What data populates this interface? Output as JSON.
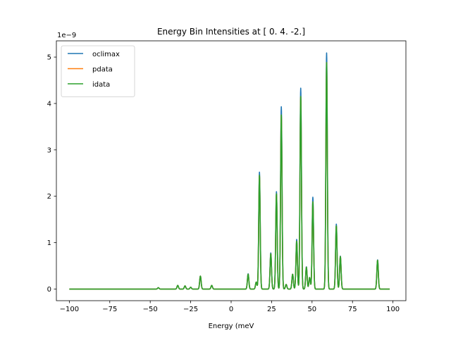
{
  "chart_data": {
    "type": "line",
    "title": "Energy Bin Intensities at [ 0.  4. -2.]",
    "xlabel": "Energy (meV",
    "ylabel": "",
    "scale_label": "1e−9",
    "xlim": [
      -108,
      108
    ],
    "ylim": [
      -0.25,
      5.35
    ],
    "xticks": [
      -100,
      -75,
      -50,
      -25,
      0,
      25,
      50,
      75,
      100
    ],
    "xtick_labels": [
      "−100",
      "−75",
      "−50",
      "−25",
      "0",
      "25",
      "50",
      "75",
      "100"
    ],
    "yticks": [
      0,
      1,
      2,
      3,
      4,
      5
    ],
    "ytick_labels": [
      "0",
      "1",
      "2",
      "3",
      "4",
      "5"
    ],
    "legend_position": "upper-left",
    "grid": false,
    "x_range": [
      -100,
      98
    ],
    "peak_width": 0.45,
    "series": [
      {
        "name": "oclimax",
        "color": "#1f77b4",
        "peaks": [
          [
            -45,
            0.03
          ],
          [
            -33,
            0.08
          ],
          [
            -28.5,
            0.07
          ],
          [
            -25,
            0.04
          ],
          [
            -19,
            0.28
          ],
          [
            -12,
            0.08
          ],
          [
            10.5,
            0.33
          ],
          [
            15.5,
            0.15
          ],
          [
            17.5,
            2.52
          ],
          [
            24.5,
            0.78
          ],
          [
            28,
            2.1
          ],
          [
            31,
            3.93
          ],
          [
            34,
            0.1
          ],
          [
            38,
            0.32
          ],
          [
            40.5,
            1.07
          ],
          [
            43,
            4.33
          ],
          [
            46.5,
            0.48
          ],
          [
            48.5,
            0.25
          ],
          [
            50.5,
            1.98
          ],
          [
            59,
            5.09
          ],
          [
            65,
            1.4
          ],
          [
            67.5,
            0.71
          ],
          [
            90.5,
            0.63
          ]
        ]
      },
      {
        "name": "pdata",
        "color": "#ff7f0e",
        "peaks": [
          [
            -45,
            0.03
          ],
          [
            -33,
            0.08
          ],
          [
            -28.5,
            0.07
          ],
          [
            -25,
            0.04
          ],
          [
            -19,
            0.28
          ],
          [
            -12,
            0.08
          ],
          [
            10.5,
            0.32
          ],
          [
            15.5,
            0.15
          ],
          [
            17.5,
            2.45
          ],
          [
            24.5,
            0.76
          ],
          [
            28,
            2.05
          ],
          [
            31,
            3.75
          ],
          [
            34,
            0.1
          ],
          [
            38,
            0.32
          ],
          [
            40.5,
            1.03
          ],
          [
            43,
            4.15
          ],
          [
            46.5,
            0.47
          ],
          [
            48.5,
            0.25
          ],
          [
            50.5,
            1.88
          ],
          [
            59,
            4.88
          ],
          [
            65,
            1.36
          ],
          [
            67.5,
            0.7
          ],
          [
            90.5,
            0.62
          ]
        ]
      },
      {
        "name": "idata",
        "color": "#2ca02c",
        "peaks": [
          [
            -45,
            0.03
          ],
          [
            -33,
            0.08
          ],
          [
            -28.5,
            0.07
          ],
          [
            -25,
            0.04
          ],
          [
            -19,
            0.28
          ],
          [
            -12,
            0.08
          ],
          [
            10.5,
            0.32
          ],
          [
            15.5,
            0.15
          ],
          [
            17.5,
            2.45
          ],
          [
            24.5,
            0.76
          ],
          [
            28,
            2.05
          ],
          [
            31,
            3.75
          ],
          [
            34,
            0.1
          ],
          [
            38,
            0.32
          ],
          [
            40.5,
            1.03
          ],
          [
            43,
            4.15
          ],
          [
            46.5,
            0.47
          ],
          [
            48.5,
            0.25
          ],
          [
            50.5,
            1.88
          ],
          [
            59,
            4.88
          ],
          [
            65,
            1.36
          ],
          [
            67.5,
            0.7
          ],
          [
            90.5,
            0.62
          ]
        ]
      }
    ]
  }
}
